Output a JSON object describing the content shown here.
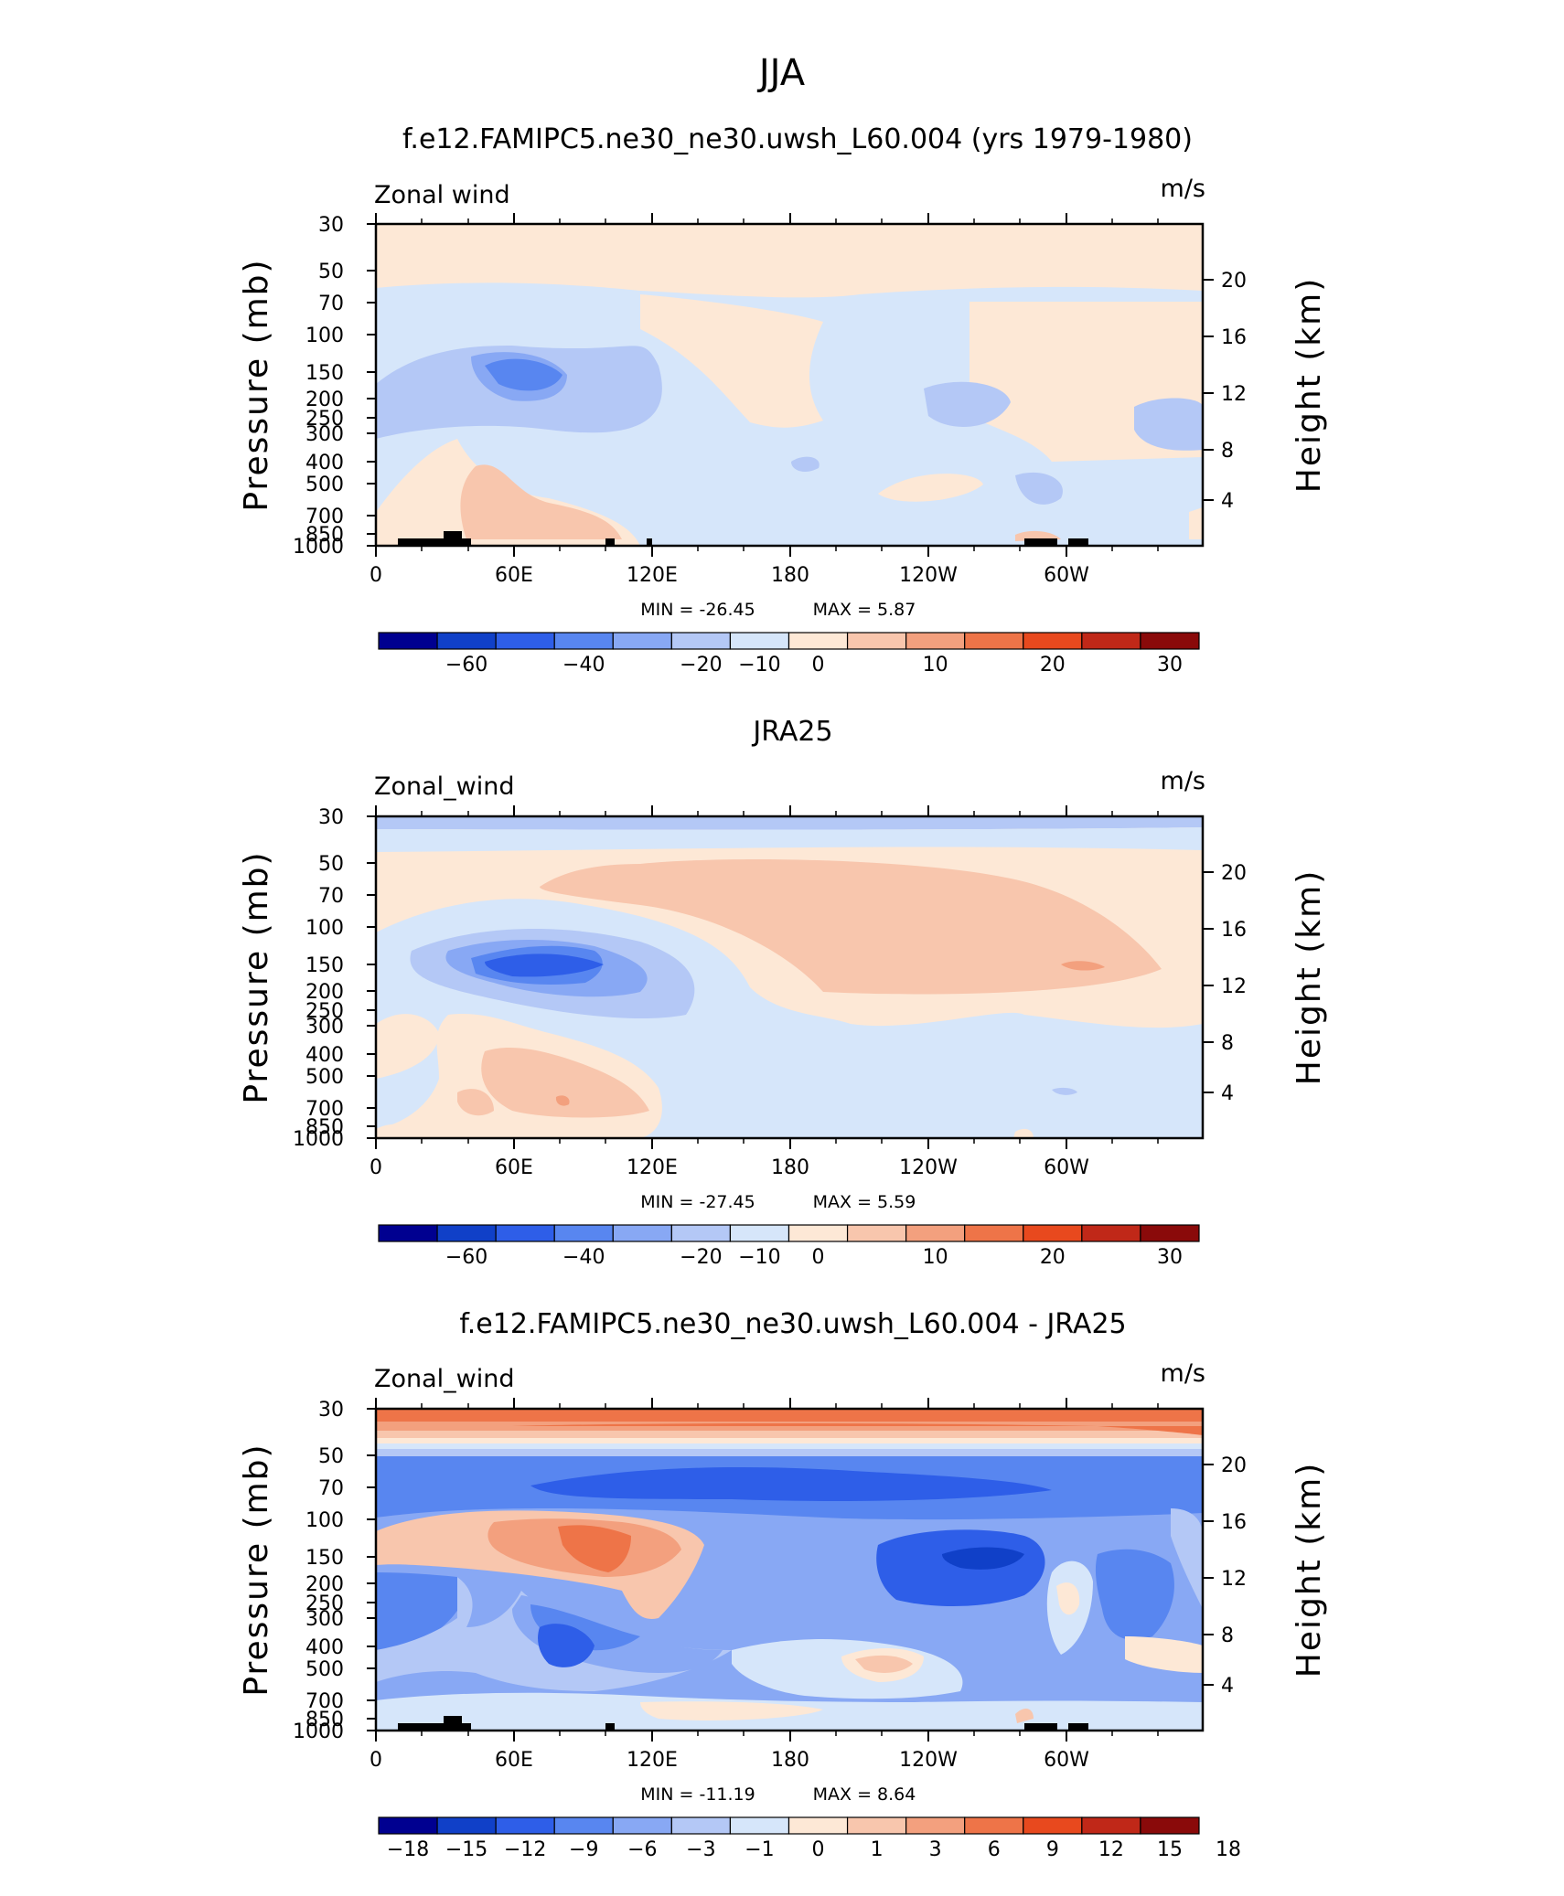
{
  "figure": {
    "title": "JJA"
  },
  "chart_data": [
    {
      "type": "heatmap",
      "title": "f.e12.FAMIPC5.ne30_ne30.uwsh_L60.004 (yrs 1979-1980)",
      "left_label": "Zonal wind",
      "right_label": "m/s",
      "ylabel": "Pressure (mb)",
      "y2label": "Height (km)",
      "xticks": [
        "0",
        "60E",
        "120E",
        "180",
        "120W",
        "60W"
      ],
      "yticks": [
        "30",
        "50",
        "70",
        "100",
        "150",
        "200",
        "250",
        "300",
        "400",
        "500",
        "700",
        "850",
        "1000"
      ],
      "y2ticks": [
        "20",
        "16",
        "12",
        "8",
        "4"
      ],
      "min_label": "MIN = -26.45",
      "max_label": "MAX = 5.87",
      "min": -26.45,
      "max": 5.87,
      "colorbar": {
        "labels": [
          "-60",
          "-40",
          "-20",
          "-10",
          "0",
          "10",
          "20",
          "30"
        ],
        "colors": [
          "#000090",
          "#1040c8",
          "#2e5ee8",
          "#5886f0",
          "#88a8f4",
          "#b4c8f6",
          "#d6e6fa",
          "#fde8d6",
          "#f8c6ad",
          "#f3a07e",
          "#ee7448",
          "#e8491e",
          "#c02818",
          "#8a0a0a"
        ]
      }
    },
    {
      "type": "heatmap",
      "title": "JRA25",
      "left_label": "Zonal_wind",
      "right_label": "m/s",
      "ylabel": "Pressure (mb)",
      "y2label": "Height (km)",
      "xticks": [
        "0",
        "60E",
        "120E",
        "180",
        "120W",
        "60W"
      ],
      "yticks": [
        "30",
        "50",
        "70",
        "100",
        "150",
        "200",
        "250",
        "300",
        "400",
        "500",
        "700",
        "850",
        "1000"
      ],
      "y2ticks": [
        "20",
        "16",
        "12",
        "8",
        "4"
      ],
      "min_label": "MIN = -27.45",
      "max_label": "MAX = 5.59",
      "min": -27.45,
      "max": 5.59,
      "colorbar": {
        "labels": [
          "-60",
          "-40",
          "-20",
          "-10",
          "0",
          "10",
          "20",
          "30"
        ],
        "colors": [
          "#000090",
          "#1040c8",
          "#2e5ee8",
          "#5886f0",
          "#88a8f4",
          "#b4c8f6",
          "#d6e6fa",
          "#fde8d6",
          "#f8c6ad",
          "#f3a07e",
          "#ee7448",
          "#e8491e",
          "#c02818",
          "#8a0a0a"
        ]
      }
    },
    {
      "type": "heatmap",
      "title": "f.e12.FAMIPC5.ne30_ne30.uwsh_L60.004 - JRA25",
      "left_label": "Zonal_wind",
      "right_label": "m/s",
      "ylabel": "Pressure (mb)",
      "y2label": "Height (km)",
      "xticks": [
        "0",
        "60E",
        "120E",
        "180",
        "120W",
        "60W"
      ],
      "yticks": [
        "30",
        "50",
        "70",
        "100",
        "150",
        "200",
        "250",
        "300",
        "400",
        "500",
        "700",
        "850",
        "1000"
      ],
      "y2ticks": [
        "20",
        "16",
        "12",
        "8",
        "4"
      ],
      "min_label": "MIN = -11.19",
      "max_label": "MAX = 8.64",
      "min": -11.19,
      "max": 8.64,
      "colorbar": {
        "labels": [
          "-18",
          "-15",
          "-12",
          "-9",
          "-6",
          "-3",
          "-1",
          "0",
          "1",
          "3",
          "6",
          "9",
          "12",
          "15",
          "18"
        ],
        "colors": [
          "#000090",
          "#1040c8",
          "#2e5ee8",
          "#5886f0",
          "#88a8f4",
          "#b4c8f6",
          "#d6e6fa",
          "#fde8d6",
          "#f8c6ad",
          "#f3a07e",
          "#ee7448",
          "#e8491e",
          "#c02818",
          "#8a0a0a"
        ]
      }
    }
  ]
}
